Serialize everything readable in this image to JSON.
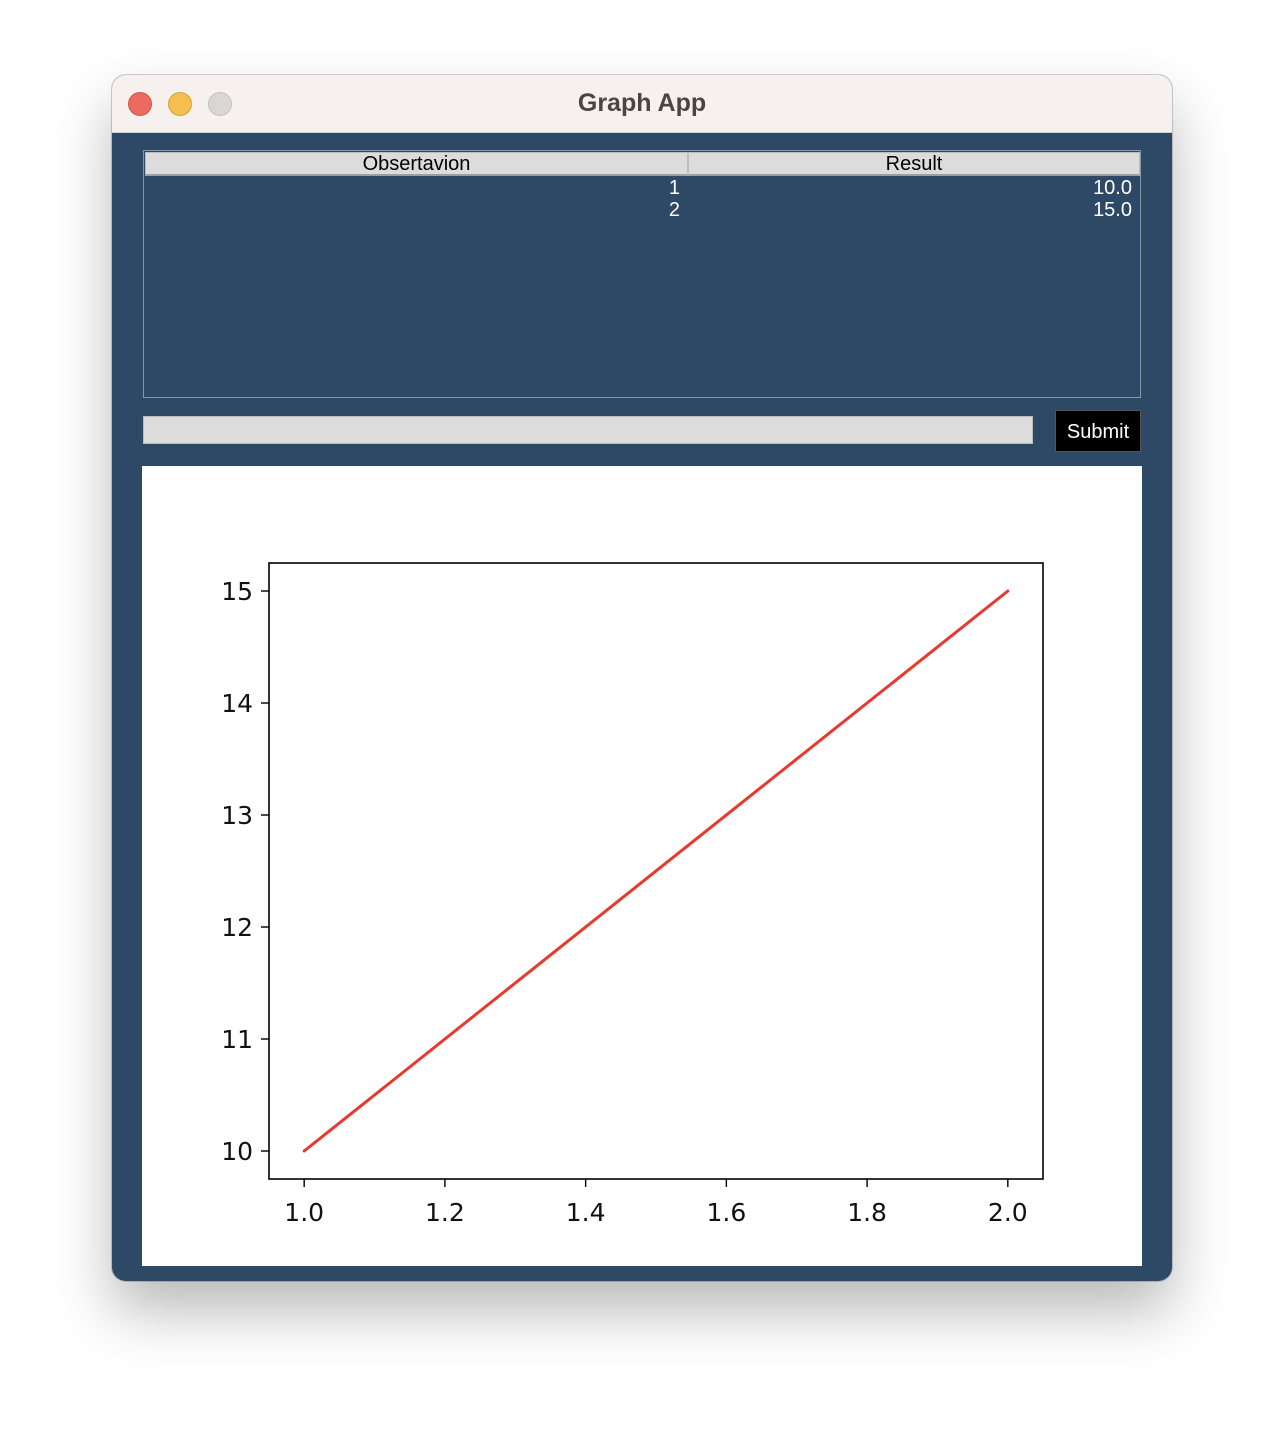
{
  "window": {
    "title": "Graph App"
  },
  "table": {
    "columns": [
      "Obsertavion",
      "Result"
    ],
    "rows": [
      {
        "observation": "1",
        "result": "10.0"
      },
      {
        "observation": "2",
        "result": "15.0"
      }
    ]
  },
  "input": {
    "value": "",
    "placeholder": ""
  },
  "submit": {
    "label": "Submit"
  },
  "colors": {
    "background": "#2d4966",
    "line": "#e8392f"
  },
  "chart_data": {
    "type": "line",
    "x": [
      1.0,
      2.0
    ],
    "series": [
      {
        "values": [
          10.0,
          15.0
        ],
        "color": "#e8392f"
      }
    ],
    "xlim": [
      0.95,
      2.05
    ],
    "ylim": [
      9.75,
      15.25
    ],
    "xticks": [
      "1.0",
      "1.2",
      "1.4",
      "1.6",
      "1.8",
      "2.0"
    ],
    "yticks": [
      "10",
      "11",
      "12",
      "13",
      "14",
      "15"
    ],
    "grid": false
  }
}
